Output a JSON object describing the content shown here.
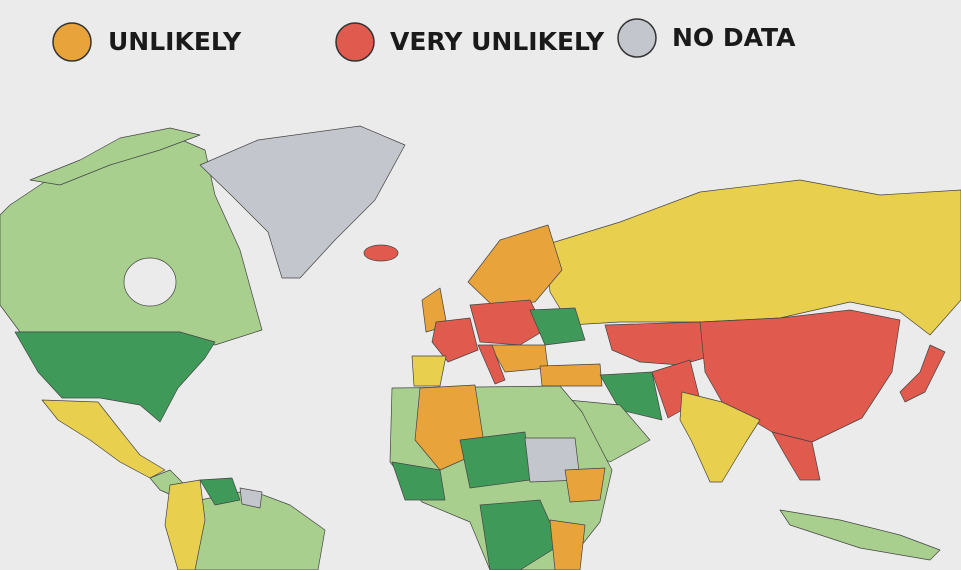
{
  "legend": {
    "items": [
      {
        "label": "UNLIKELY",
        "color": "#e8a33a"
      },
      {
        "label": "VERY UNLIKELY",
        "color": "#e05a4e"
      },
      {
        "label": "NO DATA",
        "color": "#c3c6cc"
      }
    ]
  }
}
